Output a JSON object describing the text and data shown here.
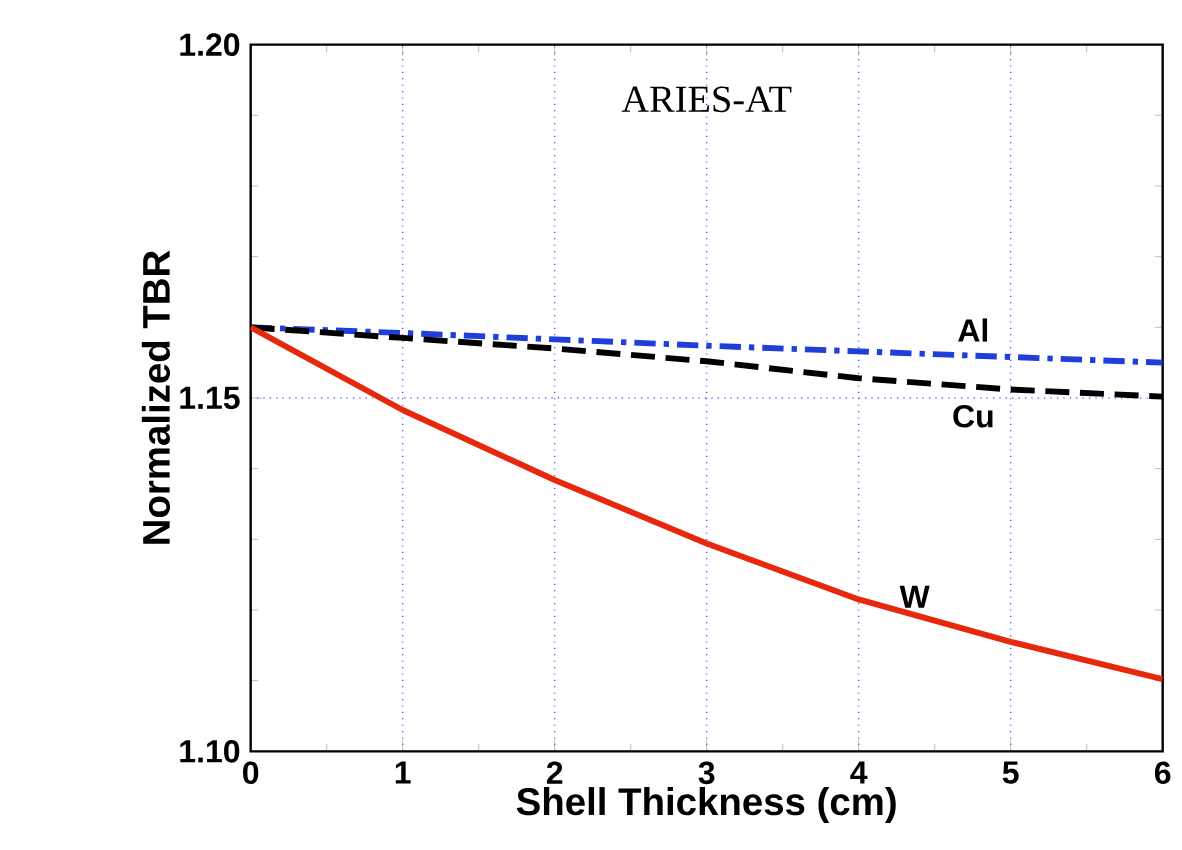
{
  "chart_data": {
    "type": "line",
    "title": "ARIES-AT",
    "xlabel": "Shell Thickness (cm)",
    "ylabel": "Normalized TBR",
    "x": [
      0,
      1,
      2,
      3,
      4,
      5,
      6
    ],
    "series": [
      {
        "name": "Al",
        "color": "#1f3fd8",
        "line_style": "dashdot",
        "values": [
          1.16,
          1.1592,
          1.1583,
          1.1574,
          1.1566,
          1.1558,
          1.155
        ]
      },
      {
        "name": "Cu",
        "color": "#000000",
        "line_style": "dashed",
        "values": [
          1.16,
          1.1585,
          1.157,
          1.1552,
          1.1528,
          1.1512,
          1.1502
        ]
      },
      {
        "name": "W",
        "color": "#e8280c",
        "line_style": "solid",
        "values": [
          1.16,
          1.1483,
          1.1384,
          1.1294,
          1.1215,
          1.1155,
          1.1102
        ]
      }
    ],
    "xlim": [
      0,
      6
    ],
    "ylim": [
      1.1,
      1.2
    ],
    "xticks": [
      0,
      1,
      2,
      3,
      4,
      5,
      6
    ],
    "yticks": [
      {
        "value": 1.1,
        "label": "1.10"
      },
      {
        "value": 1.15,
        "label": "1.15"
      },
      {
        "value": 1.2,
        "label": "1.20"
      }
    ],
    "grid": true,
    "marker": "none"
  }
}
